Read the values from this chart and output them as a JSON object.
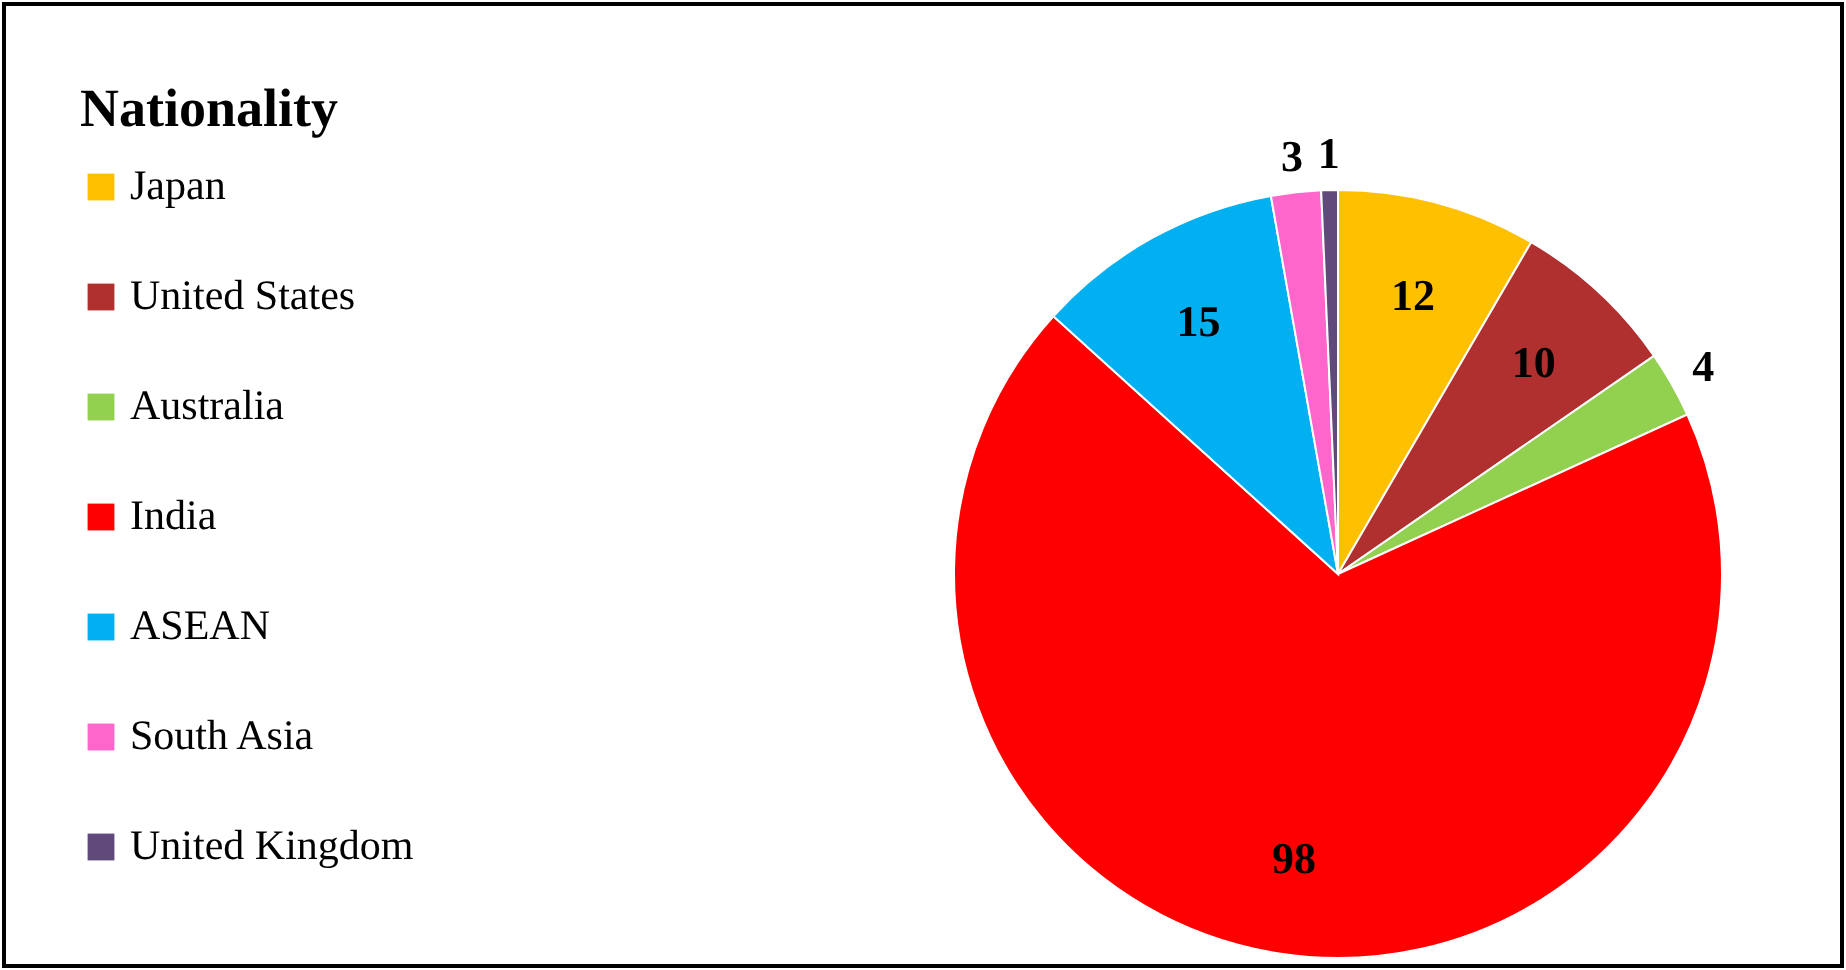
{
  "chart_data": {
    "type": "pie",
    "legend_title": "Nationality",
    "categories": [
      "Japan",
      "United States",
      "Australia",
      "India",
      "ASEAN",
      "South Asia",
      "United Kingdom"
    ],
    "values": [
      12,
      10,
      4,
      98,
      15,
      3,
      1
    ],
    "colors": [
      "#ffc000",
      "#b03030",
      "#92d050",
      "#ff0000",
      "#00b0f0",
      "#ff66cc",
      "#604a7b"
    ],
    "data_labels": true,
    "legend": "left"
  }
}
